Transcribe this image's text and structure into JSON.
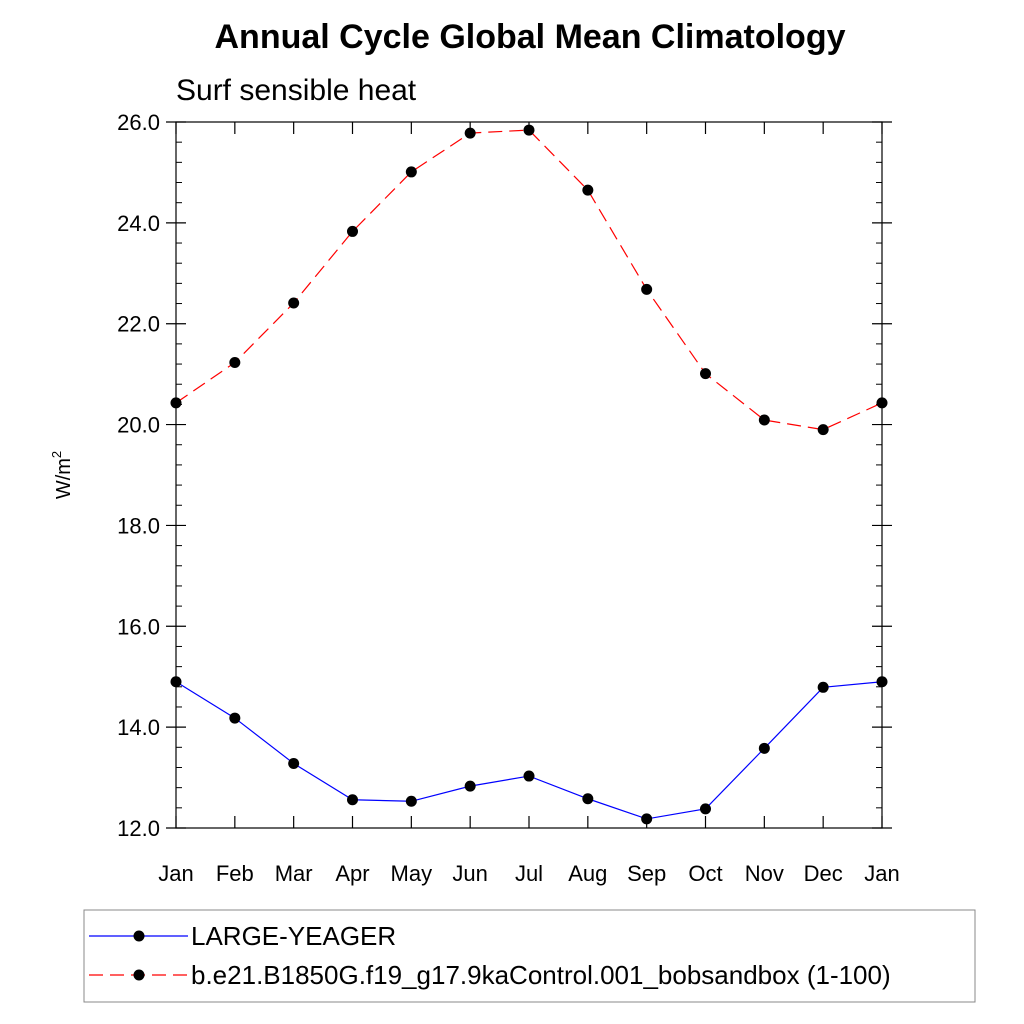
{
  "chart_data": {
    "type": "line",
    "title": "Annual Cycle Global Mean Climatology",
    "subtitle": "Surf sensible heat",
    "ylabel": "W/m",
    "ylabel_superscript": "2",
    "xlabel": "",
    "categories": [
      "Jan",
      "Feb",
      "Mar",
      "Apr",
      "May",
      "Jun",
      "Jul",
      "Aug",
      "Sep",
      "Oct",
      "Nov",
      "Dec",
      "Jan"
    ],
    "ylim": [
      12.0,
      26.0
    ],
    "y_ticks": [
      12.0,
      14.0,
      16.0,
      18.0,
      20.0,
      22.0,
      24.0,
      26.0
    ],
    "y_tick_labels": [
      "12.0",
      "14.0",
      "16.0",
      "18.0",
      "20.0",
      "22.0",
      "24.0",
      "26.0"
    ],
    "y_minor_step": 0.4,
    "grid": false,
    "legend_position": "bottom",
    "series": [
      {
        "name": "LARGE-YEAGER",
        "color": "#0000ff",
        "line_style": "solid",
        "marker": "filled-circle",
        "values": [
          14.9,
          14.18,
          13.28,
          12.56,
          12.53,
          12.83,
          13.03,
          12.58,
          12.18,
          12.38,
          13.58,
          14.79,
          14.9
        ]
      },
      {
        "name": "b.e21.B1850G.f19_g17.9kaControl.001_bobsandbox (1-100)",
        "color": "#ff0000",
        "line_style": "dashed",
        "marker": "filled-circle",
        "values": [
          20.43,
          21.23,
          22.41,
          23.83,
          25.01,
          25.78,
          25.84,
          24.65,
          22.68,
          21.01,
          20.09,
          19.9,
          20.43
        ]
      }
    ]
  }
}
